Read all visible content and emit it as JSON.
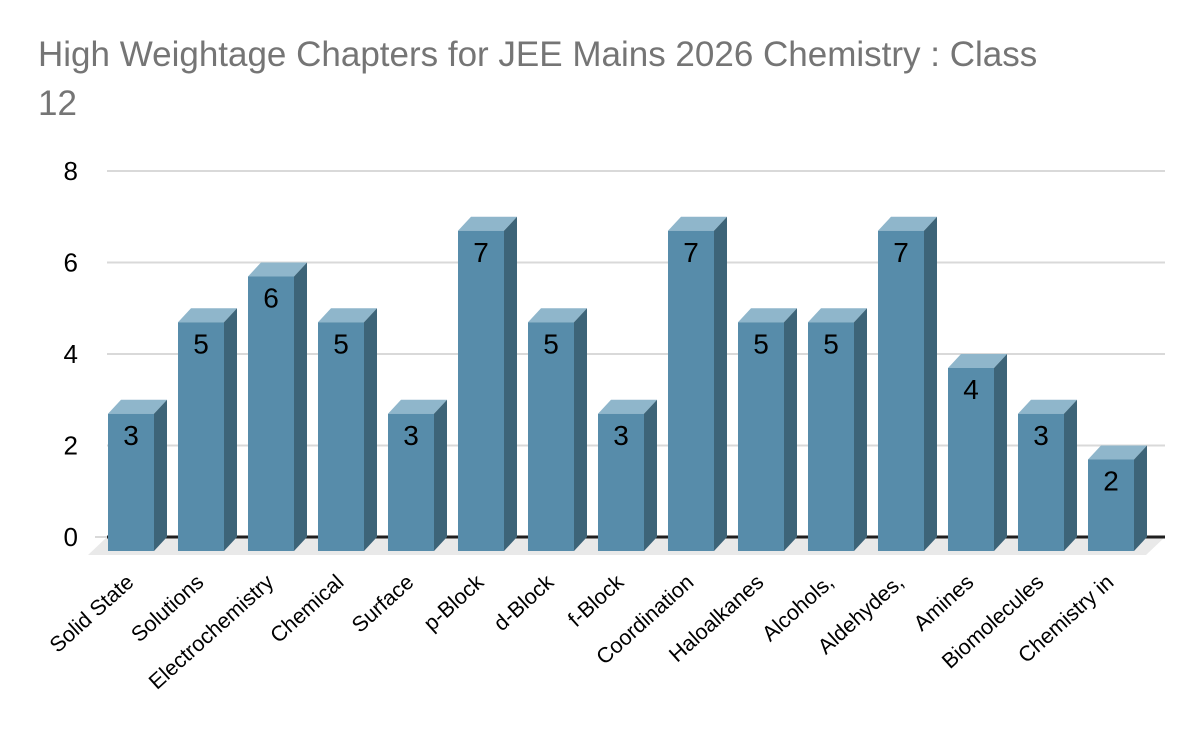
{
  "chart_data": {
    "type": "bar",
    "style": "3d-column",
    "title": "High Weightage Chapters for JEE Mains 2026 Chemistry : Class 12",
    "title_lines": [
      "High Weightage Chapters for JEE Mains 2026 Chemistry : Class",
      "12"
    ],
    "categories": [
      "Solid State",
      "Solutions",
      "Electrochemistry",
      "Chemical",
      "Surface",
      "p-Block",
      "d-Block",
      "f-Block",
      "Coordination",
      "Haloalkanes",
      "Alcohols,",
      "Aldehydes,",
      "Amines",
      "Biomolecules",
      "Chemistry in"
    ],
    "values": [
      3,
      5,
      6,
      5,
      3,
      7,
      5,
      3,
      7,
      5,
      5,
      7,
      4,
      3,
      2
    ],
    "xlabel": "",
    "ylabel": "",
    "ylim": [
      0,
      8
    ],
    "yticks": [
      0,
      2,
      4,
      6,
      8
    ],
    "grid": true,
    "legend": "none",
    "colors": {
      "bar_front": "#578caa",
      "bar_top": "#8fb6cb",
      "bar_side": "#3d6478",
      "gridline": "#d9d9d9",
      "baseline": "#1f1f1f",
      "floor": "#e9e9e9",
      "title_text": "#757575",
      "label_text": "#000000",
      "background": "#ffffff"
    }
  }
}
